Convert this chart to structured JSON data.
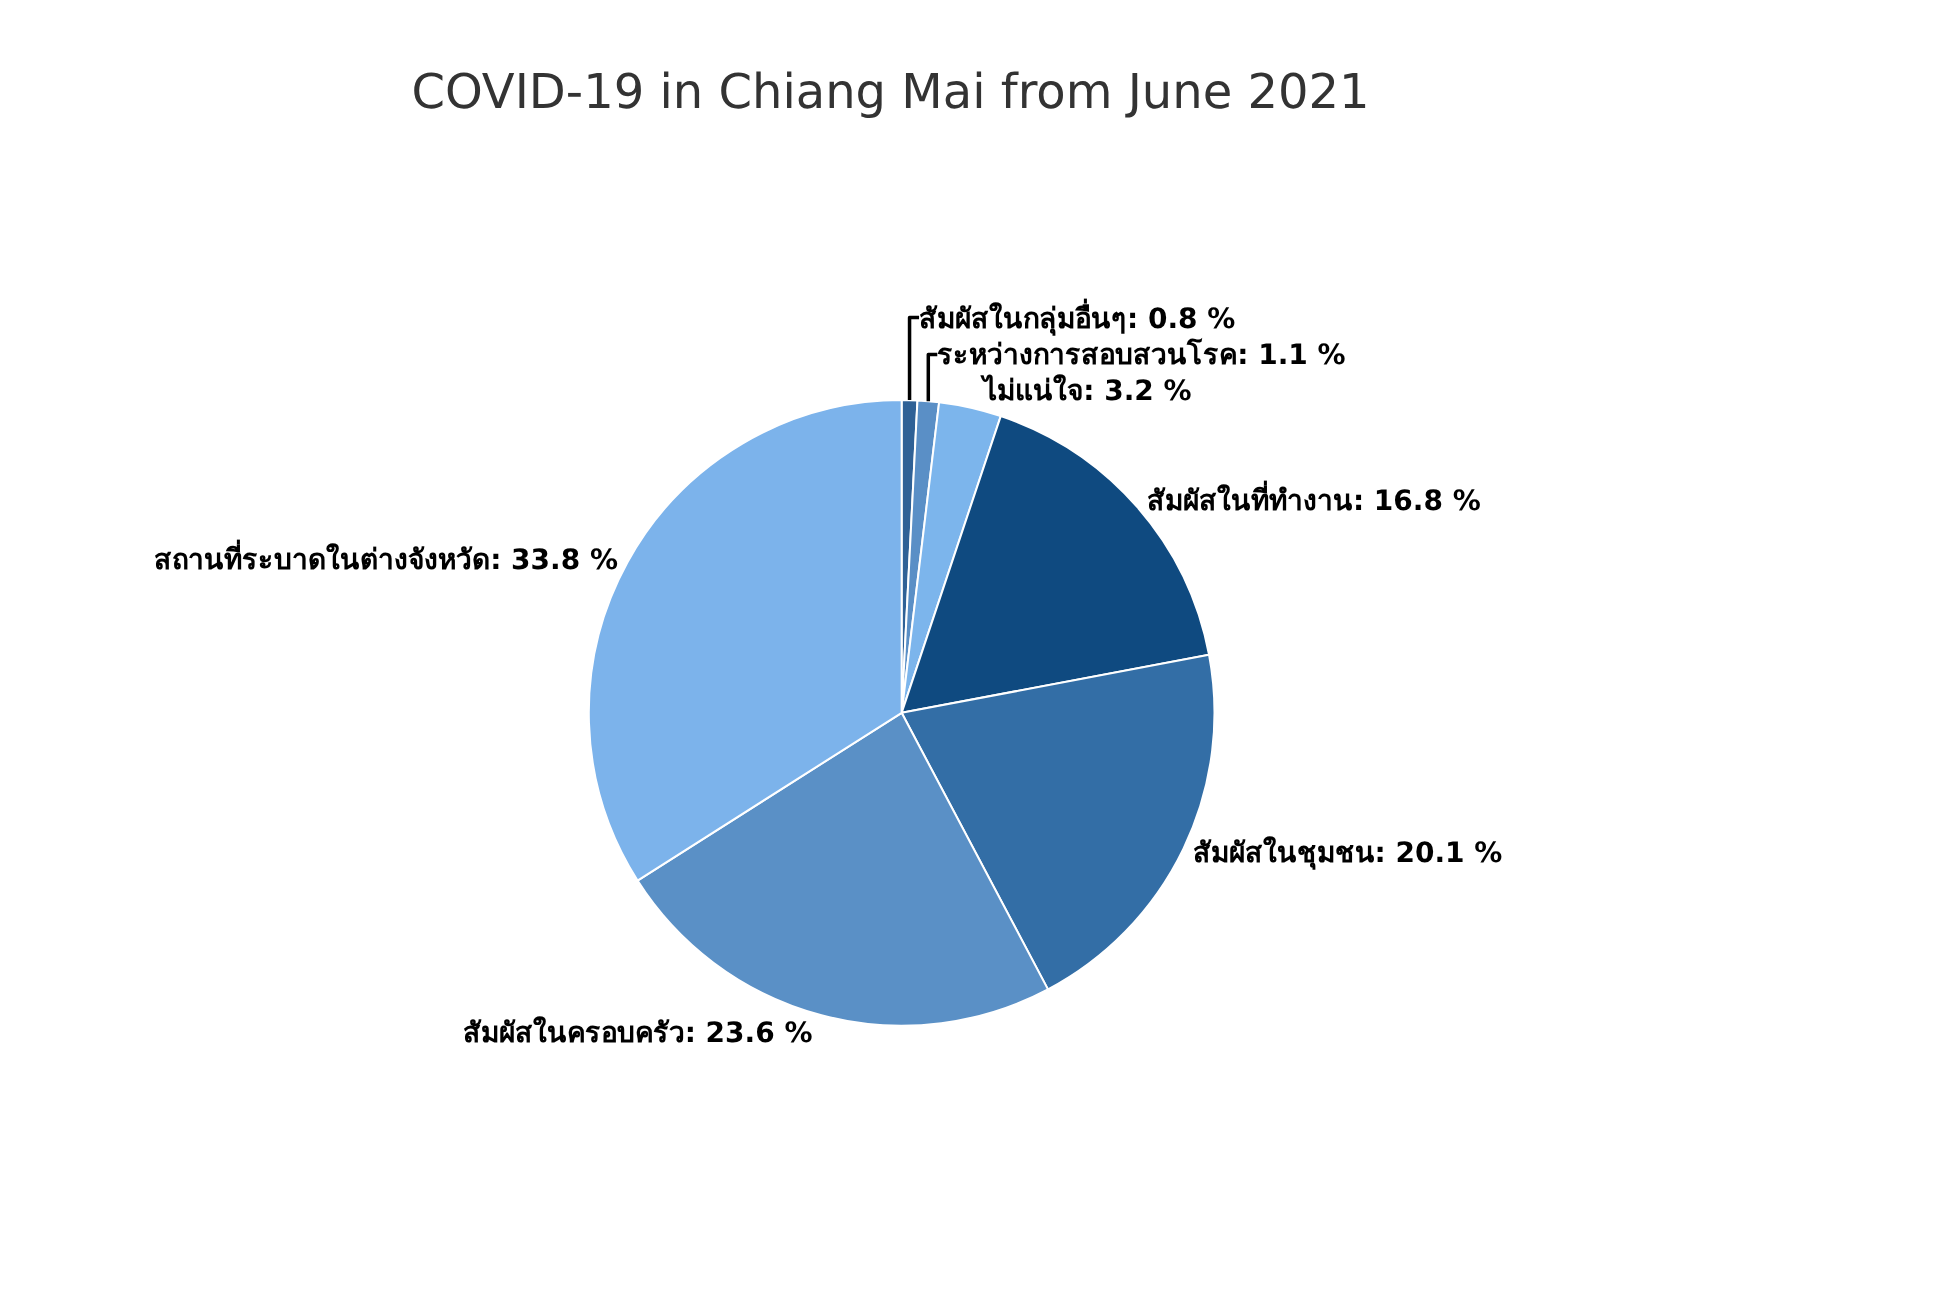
{
  "chart_data": {
    "type": "pie",
    "title": "COVID-19 in Chiang Mai from June 2021",
    "categories": [
      "สัมผัสในกลุ่มอื่นๆ",
      "ระหว่างการสอบสวนโรค",
      "ไม่แน่ใจ",
      "สัมผัสในที่ทำงาน",
      "สัมผัสในชุมชน",
      "สัมผัสในครอบครัว",
      "สถานที่ระบาดในต่างจังหวัด"
    ],
    "values": [
      0.8,
      1.1,
      3.2,
      16.8,
      20.1,
      23.6,
      33.8
    ],
    "value_labels": [
      "0.8 %",
      "1.1 %",
      "3.2 %",
      "16.8 %",
      "20.1 %",
      "23.6 %",
      "33.8 %"
    ],
    "colors": [
      "#2f6196",
      "#5a8fc6",
      "#7cb5ec",
      "#0f4a80",
      "#336ea6",
      "#5a90c6",
      "#7cb3eb"
    ],
    "legend": false
  }
}
